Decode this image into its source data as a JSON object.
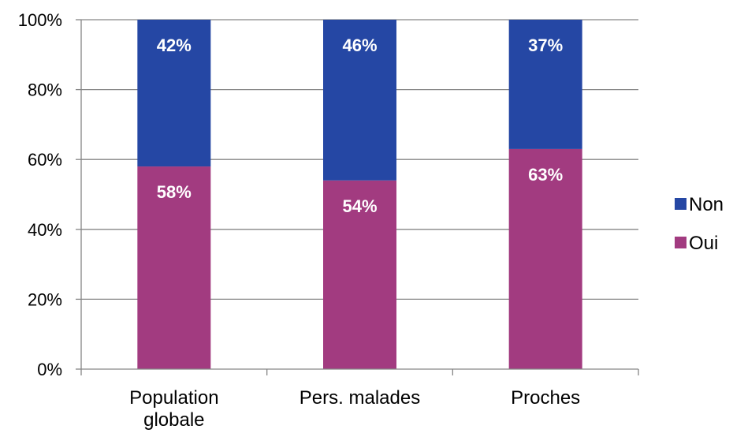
{
  "chart_data": {
    "type": "bar",
    "stacked": true,
    "categories": [
      [
        "Population",
        "globale"
      ],
      [
        "Pers. malades"
      ],
      [
        "Proches"
      ]
    ],
    "series": [
      {
        "name": "Oui",
        "values": [
          58,
          54,
          63
        ],
        "labels": [
          "58%",
          "54%",
          "63%"
        ],
        "color": "#a23b80"
      },
      {
        "name": "Non",
        "values": [
          42,
          46,
          37
        ],
        "labels": [
          "42%",
          "46%",
          "37%"
        ],
        "color": "#2547a4"
      }
    ],
    "y_ticks": [
      "0%",
      "20%",
      "40%",
      "60%",
      "80%",
      "100%"
    ],
    "ylim": [
      0,
      100
    ],
    "grid": true,
    "legend": {
      "position": "right",
      "order": [
        "Non",
        "Oui"
      ]
    },
    "title": "",
    "xlabel": "",
    "ylabel": ""
  }
}
